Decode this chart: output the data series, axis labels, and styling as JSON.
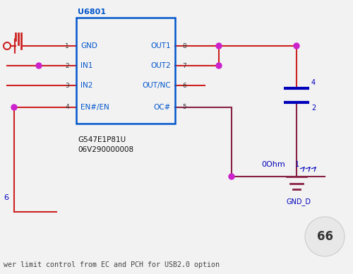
{
  "bg_color": "#f2f2f2",
  "chip_label": "U6801",
  "chip_part": "G547E1P81U",
  "chip_serial": "06V290000008",
  "chip_color": "#0055cc",
  "pin_labels_left": [
    "GND",
    "IN1",
    "IN2",
    "EN#/EN"
  ],
  "pin_labels_right": [
    "OUT1",
    "OUT2",
    "OUT/NC",
    "OC#"
  ],
  "pin_nums_left": [
    "1",
    "2",
    "3",
    "4"
  ],
  "pin_nums_right": [
    "8",
    "7",
    "6",
    "5"
  ],
  "wire_red": "#cc2222",
  "wire_darkred": "#882244",
  "wire_mag": "#cc22cc",
  "wire_blue": "#0000bb",
  "text_bottom": "wer limit control from EC and PCH for USB2.0 option",
  "label_6": "6",
  "label_0ohm": "0Ohm",
  "label_gnd_d": "GND_D",
  "label_1": "1",
  "label_66": "66",
  "label_4": "4",
  "label_2": "2"
}
